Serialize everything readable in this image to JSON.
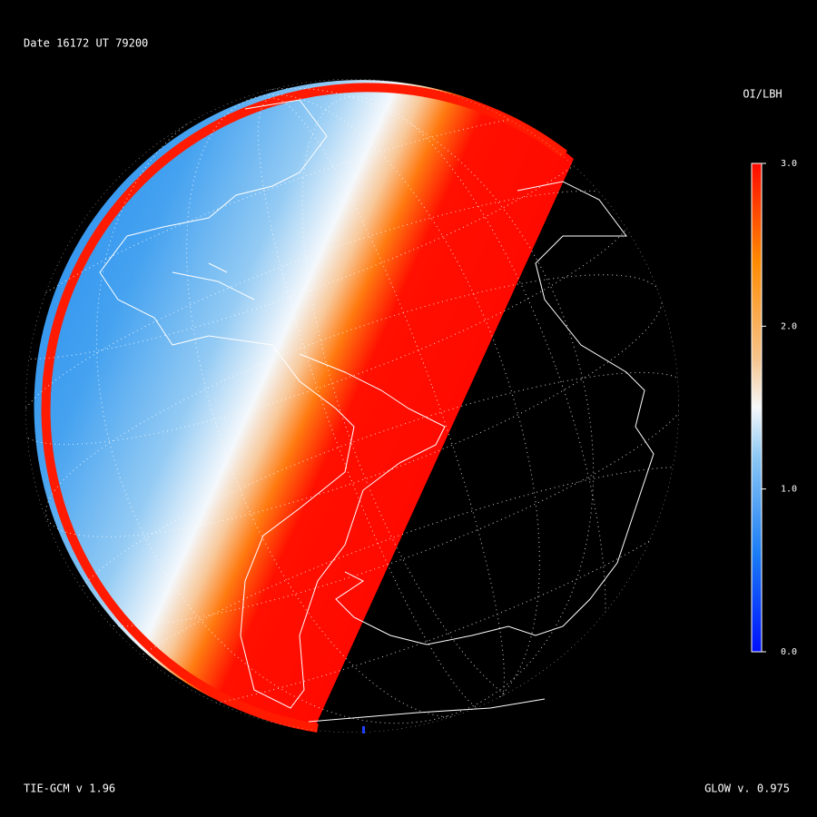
{
  "header": {
    "title": "Date 16172  UT 79200"
  },
  "colorbar": {
    "title": "OI/LBH",
    "lim": [
      0,
      3
    ],
    "ticks": [
      {
        "value": 3,
        "label": "3.0"
      },
      {
        "value": 2,
        "label": "2.0"
      },
      {
        "value": 1,
        "label": "1.0"
      },
      {
        "value": 0,
        "label": "0.0"
      }
    ]
  },
  "footer": {
    "left": "TIE-GCM v 1.96",
    "right": "GLOW v. 0.975"
  }
}
